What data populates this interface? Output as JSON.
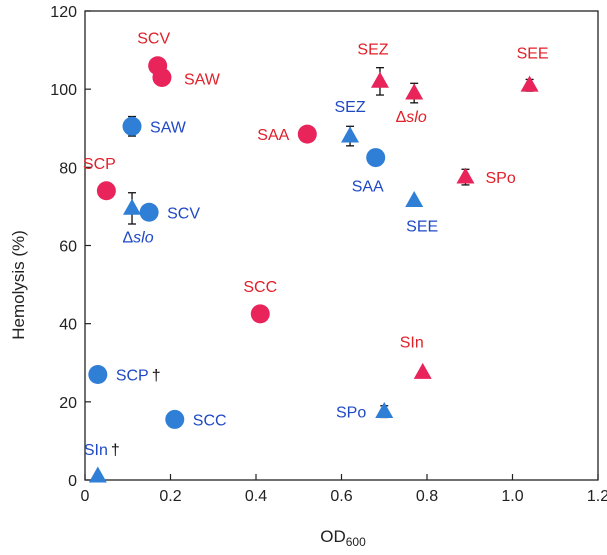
{
  "chart_data": {
    "type": "scatter",
    "title": "",
    "xlabel": "OD",
    "xlabel_sub": "600",
    "ylabel": "Hemolysis (%)",
    "xlim": [
      0,
      1.2
    ],
    "ylim": [
      0,
      120
    ],
    "x_ticks": [
      "0",
      "0.2",
      "0.4",
      "0.6",
      "0.8",
      "1.0",
      "1.2"
    ],
    "y_ticks": [
      "0",
      "20",
      "40",
      "60",
      "80",
      "100",
      "120"
    ],
    "grid": false,
    "colors": {
      "red": "#e8245a",
      "blue": "#2f7fd6",
      "red_text": "#e0202a",
      "blue_text": "#1f49c4"
    },
    "series": [
      {
        "color": "red",
        "points": [
          {
            "label": "SCV",
            "x": 0.17,
            "y": 106,
            "marker": "circle"
          },
          {
            "label": "SAW",
            "x": 0.18,
            "y": 103,
            "marker": "circle"
          },
          {
            "label": "SCP",
            "x": 0.05,
            "y": 74,
            "marker": "circle"
          },
          {
            "label": "SCC",
            "x": 0.41,
            "y": 42.5,
            "marker": "circle"
          },
          {
            "label": "SAA",
            "x": 0.52,
            "y": 88.5,
            "marker": "circle"
          },
          {
            "label": "SEZ",
            "x": 0.69,
            "y": 102,
            "marker": "triangle",
            "err": 3.5
          },
          {
            "label": "Δslo",
            "x": 0.77,
            "y": 99,
            "marker": "triangle",
            "err": 2.5
          },
          {
            "label": "SEE",
            "x": 1.04,
            "y": 101,
            "marker": "triangle",
            "err": 1.5
          },
          {
            "label": "SPo",
            "x": 0.89,
            "y": 77.5,
            "marker": "triangle",
            "err": 2
          },
          {
            "label": "SIn",
            "x": 0.79,
            "y": 27.5,
            "marker": "triangle"
          }
        ]
      },
      {
        "color": "blue",
        "points": [
          {
            "label": "SAW",
            "x": 0.11,
            "y": 90.5,
            "marker": "circle",
            "err": 2.5
          },
          {
            "label": "SCV",
            "x": 0.15,
            "y": 68.5,
            "marker": "circle"
          },
          {
            "label": "SCP",
            "x": 0.03,
            "y": 27,
            "marker": "circle",
            "dagger": "†"
          },
          {
            "label": "SCC",
            "x": 0.21,
            "y": 15.5,
            "marker": "circle"
          },
          {
            "label": "SAA",
            "x": 0.68,
            "y": 82.5,
            "marker": "circle"
          },
          {
            "label": "SEZ",
            "x": 0.62,
            "y": 88,
            "marker": "triangle",
            "err": 2.5
          },
          {
            "label": "Δslo",
            "x": 0.11,
            "y": 69.5,
            "marker": "triangle",
            "err": 4
          },
          {
            "label": "SEE",
            "x": 0.77,
            "y": 71.5,
            "marker": "triangle"
          },
          {
            "label": "SPo",
            "x": 0.7,
            "y": 17.5,
            "marker": "triangle",
            "err": 1.5
          },
          {
            "label": "SIn",
            "x": 0.03,
            "y": 1,
            "marker": "triangle",
            "dagger": "†"
          }
        ]
      }
    ]
  }
}
